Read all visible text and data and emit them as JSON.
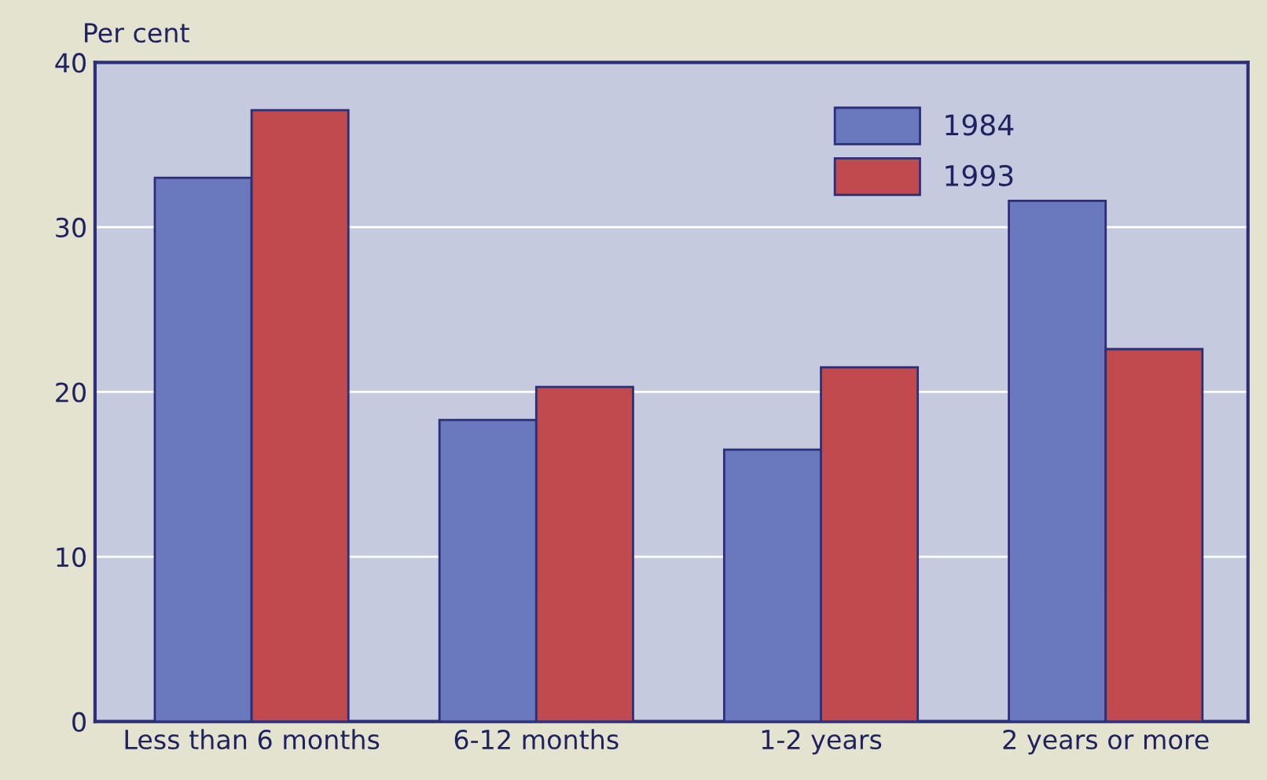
{
  "chart_data": {
    "type": "bar",
    "ylabel": "Per cent",
    "categories": [
      "Less than 6 months",
      "6-12 months",
      "1-2 years",
      "2 years or more"
    ],
    "series": [
      {
        "name": "1984",
        "color": "#6a78be",
        "values": [
          33,
          18.3,
          16.5,
          31.6
        ]
      },
      {
        "name": "1993",
        "color": "#c04a4e",
        "values": [
          37.1,
          20.3,
          21.5,
          22.6
        ]
      }
    ],
    "ylim": [
      0,
      40
    ],
    "yticks": [
      0,
      10,
      20,
      30,
      40
    ],
    "grid": "y",
    "legend": "top right"
  }
}
